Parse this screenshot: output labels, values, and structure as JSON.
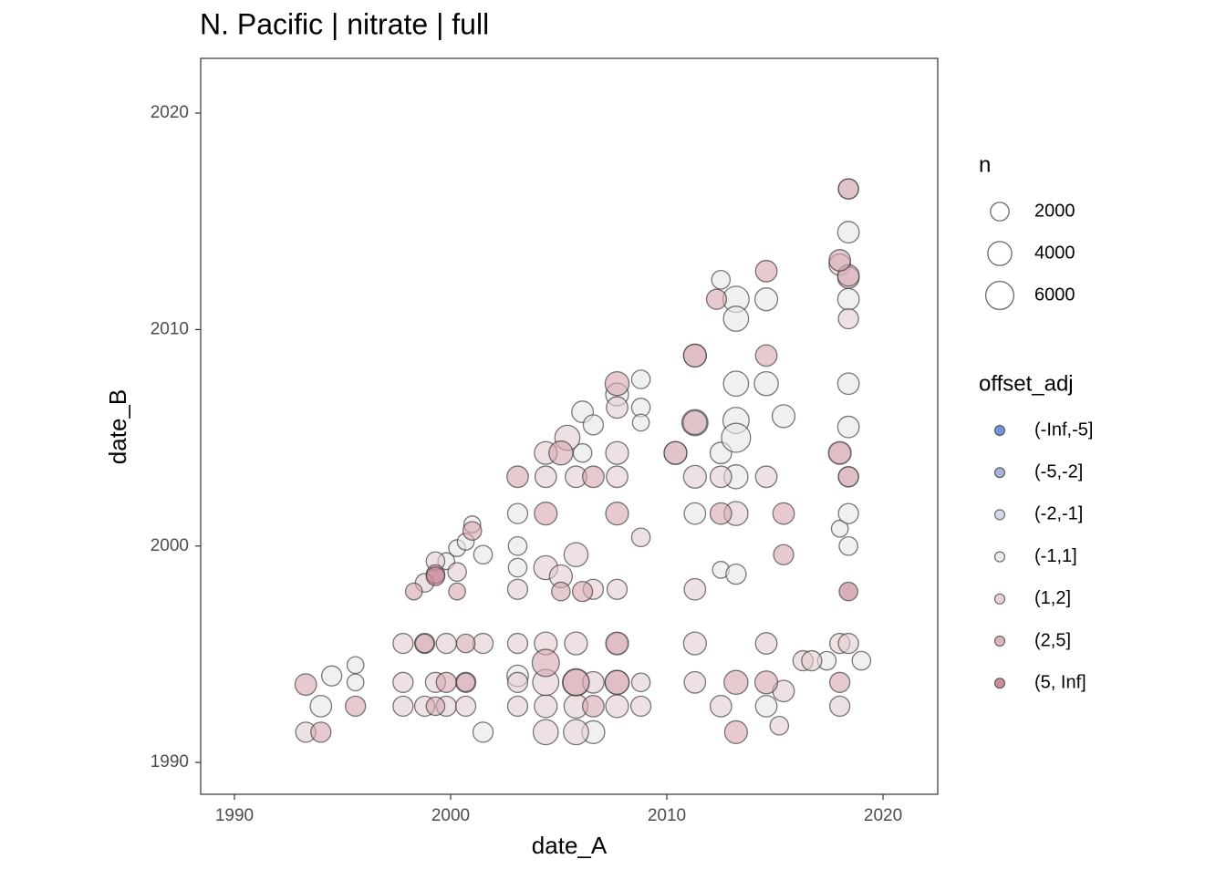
{
  "chart_data": {
    "type": "bubble",
    "title": "N. Pacific | nitrate | full",
    "x_label": "date_A",
    "y_label": "date_B",
    "xlim": [
      1988.44,
      2022.53
    ],
    "xticks": [
      1990,
      2000,
      2010,
      2020
    ],
    "ylim": [
      1988.53,
      2022.53
    ],
    "yticks": [
      1990,
      2000,
      2010,
      2020
    ],
    "size_legend": {
      "title": "n",
      "values": [
        2000,
        4000,
        6000
      ]
    },
    "color_legend_title": "offset_adj",
    "series": [
      {
        "name": "(-Inf,-5]",
        "color": "#5b7fcc",
        "x": [],
        "y": [],
        "size": []
      },
      {
        "name": "(-5,-2]",
        "color": "#98a6d6",
        "x": [],
        "y": [],
        "size": []
      },
      {
        "name": "(-2,-1]",
        "color": "#cfd2e2",
        "x": [],
        "y": [],
        "size": []
      },
      {
        "name": "(-1,1]",
        "color": "#e6e6e6",
        "x": [
          1994.0,
          1994.5,
          1995.6,
          1995.6,
          2001.5,
          2003.1,
          2006.6,
          2003.1,
          2003.1,
          2003.1,
          1999.8,
          2000.3,
          2000.7,
          2001.5,
          2001.0,
          2006.1,
          2006.6,
          2007.7,
          2008.8,
          2008.8,
          2008.8,
          2006.1,
          2011.3,
          2012.5,
          2013.2,
          2013.2,
          2014.6,
          2015.4,
          2010.4,
          2011.3,
          2012.5,
          2013.2,
          2013.2,
          2012.5,
          2013.2,
          2013.2,
          2014.6,
          2018.0,
          2018.4,
          2018.4,
          2018.4,
          2018.4,
          2018.4,
          2018.4,
          2018.4,
          2019.0,
          2017.4,
          2014.6,
          2013.2
        ],
        "y": [
          1992.6,
          1994.0,
          1994.5,
          1993.7,
          1991.4,
          1994.0,
          1991.4,
          2000.0,
          2001.5,
          1999.0,
          1999.3,
          1999.9,
          2000.2,
          1999.6,
          2001.0,
          2006.2,
          2005.6,
          2007.0,
          2007.7,
          2006.4,
          2005.7,
          2004.3,
          2001.5,
          1998.9,
          2003.2,
          2005.8,
          2007.5,
          2006.0,
          2004.3,
          2005.7,
          2004.3,
          2007.5,
          2005.0,
          2012.3,
          2011.4,
          2010.5,
          2011.4,
          2000.8,
          2000.0,
          2001.5,
          2007.5,
          2005.5,
          2014.5,
          2011.4,
          2016.5,
          1994.7,
          1994.7,
          1992.6,
          1998.7
        ],
        "size": [
          3000,
          2500,
          1500,
          1500,
          2500,
          3000,
          3500,
          2000,
          2500,
          2000,
          1500,
          1500,
          1500,
          2000,
          1500,
          3000,
          2500,
          3500,
          2000,
          2000,
          1500,
          2000,
          3000,
          1500,
          4000,
          5000,
          4000,
          3500,
          3500,
          5000,
          3000,
          4500,
          6500,
          2000,
          5000,
          4500,
          3500,
          1500,
          2000,
          2500,
          3000,
          3000,
          3000,
          3000,
          2500,
          2000,
          2000,
          3000,
          2500
        ]
      },
      {
        "name": "(1,2]",
        "color": "#e3cdd1",
        "x": [
          1997.8,
          1998.8,
          1999.8,
          2000.7,
          2003.1,
          2004.4,
          2005.8,
          2007.7,
          2008.8,
          1997.8,
          1999.3,
          2000.7,
          2003.1,
          2004.4,
          2005.8,
          2006.6,
          2007.7,
          2008.8,
          1997.8,
          1998.8,
          1999.8,
          2001.5,
          2003.1,
          2004.4,
          2005.8,
          2007.7,
          1993.3,
          2004.4,
          2005.8,
          1998.8,
          1999.3,
          2000.3,
          2003.1,
          2004.4,
          2005.1,
          2005.8,
          2006.6,
          2007.7,
          2008.8,
          2004.4,
          2005.8,
          2007.7,
          2004.4,
          2005.4,
          2007.7,
          2007.7,
          2011.3,
          2011.3,
          2011.3,
          2011.3,
          2011.3,
          2012.5,
          2012.5,
          2013.2,
          2014.6,
          2014.6,
          2015.4,
          2015.2,
          2016.3,
          2016.7,
          2018.0,
          2018.4,
          2018.0,
          2018.0,
          2018.4,
          2018.0,
          2018.4,
          2018.4
        ],
        "y": [
          1992.6,
          1992.6,
          1992.6,
          1992.6,
          1992.6,
          1992.6,
          1992.6,
          1992.6,
          1992.6,
          1993.7,
          1993.7,
          1993.7,
          1993.7,
          1993.7,
          1993.7,
          1993.7,
          1993.7,
          1993.7,
          1995.5,
          1995.5,
          1995.5,
          1995.5,
          1995.5,
          1995.5,
          1995.5,
          1995.5,
          1991.4,
          1991.4,
          1991.4,
          1998.3,
          1999.3,
          1998.8,
          1998.0,
          1999.0,
          1998.6,
          1999.6,
          1998.0,
          1998.0,
          2000.4,
          2003.2,
          2003.2,
          2003.2,
          2004.3,
          2005.0,
          2004.3,
          2006.4,
          1993.7,
          1995.5,
          1998.0,
          2003.2,
          2008.8,
          1992.6,
          2003.2,
          2001.5,
          1995.5,
          2003.2,
          1993.3,
          1991.7,
          1994.7,
          1994.7,
          1995.5,
          1995.5,
          1992.6,
          2004.3,
          2003.2,
          2013.0,
          2012.4,
          2010.5
        ],
        "size": [
          2500,
          2500,
          2500,
          2500,
          2500,
          3500,
          4000,
          3500,
          2500,
          2500,
          2500,
          2500,
          2500,
          5000,
          5500,
          3000,
          4000,
          2000,
          2500,
          2500,
          2500,
          2500,
          2500,
          3500,
          3500,
          3000,
          2500,
          4500,
          4500,
          2000,
          2000,
          2000,
          2500,
          4000,
          3500,
          4000,
          2500,
          2500,
          2000,
          3000,
          3000,
          3000,
          3500,
          4500,
          3500,
          3000,
          3000,
          3500,
          3000,
          3500,
          3500,
          3000,
          3000,
          4000,
          3000,
          3000,
          3000,
          2000,
          2500,
          2500,
          2500,
          2500,
          2500,
          3000,
          2500,
          3000,
          3000,
          2500
        ]
      },
      {
        "name": "(2,5]",
        "color": "#d5a7b0",
        "x": [
          1993.3,
          1994.0,
          1995.6,
          1998.8,
          1999.3,
          1999.8,
          2000.7,
          2000.7,
          2004.4,
          2005.8,
          2006.6,
          2007.7,
          2007.7,
          1998.3,
          1999.3,
          2000.3,
          2001.0,
          2003.1,
          2004.4,
          2005.1,
          2006.6,
          2007.7,
          2007.7,
          2005.1,
          2006.1,
          2011.3,
          2011.3,
          2012.3,
          2012.5,
          2013.2,
          2013.2,
          2014.6,
          2014.6,
          2014.6,
          2015.4,
          2015.4,
          2010.4,
          2018.0,
          2018.4,
          2018.0,
          2018.4,
          2018.0,
          2018.4
        ],
        "y": [
          1993.6,
          1991.4,
          1992.6,
          1995.5,
          1992.6,
          1993.7,
          1995.5,
          1993.7,
          1994.6,
          1993.7,
          1992.6,
          1995.5,
          1993.7,
          1997.9,
          1998.7,
          1997.9,
          2000.7,
          2003.2,
          2001.5,
          2004.3,
          2003.2,
          2001.5,
          2007.5,
          1997.9,
          1997.9,
          2005.7,
          2008.8,
          2011.4,
          2001.5,
          1991.4,
          1993.7,
          2012.7,
          2008.8,
          1993.7,
          1999.6,
          2001.5,
          2004.3,
          2004.3,
          2012.5,
          2013.2,
          2016.5,
          1993.7,
          2003.2
        ],
        "size": [
          3000,
          2500,
          2500,
          2000,
          2000,
          2500,
          2000,
          2000,
          5500,
          5000,
          3000,
          3500,
          4000,
          1500,
          2000,
          1500,
          2000,
          3000,
          3500,
          4000,
          3000,
          3500,
          4000,
          2000,
          2500,
          4000,
          3500,
          2500,
          3000,
          3500,
          4000,
          3000,
          3000,
          3500,
          2500,
          3000,
          3500,
          3500,
          3000,
          3000,
          2500,
          2500,
          2500
        ]
      },
      {
        "name": "(5, Inf]",
        "color": "#c07a89",
        "x": [
          1999.3,
          2018.4
        ],
        "y": [
          1998.6,
          1997.9
        ],
        "size": [
          2000,
          2000
        ]
      }
    ]
  }
}
